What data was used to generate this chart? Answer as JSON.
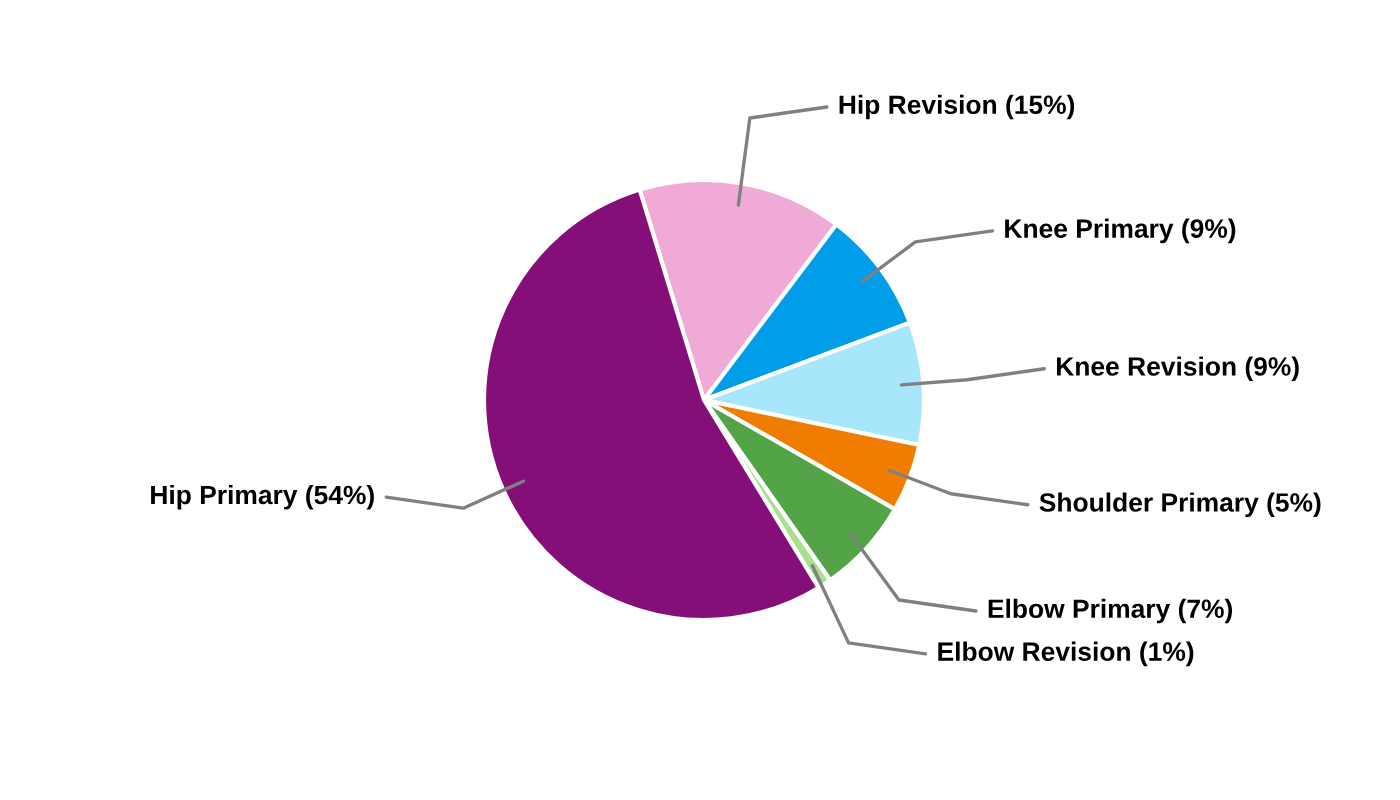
{
  "chart_data": {
    "type": "pie",
    "categories": [
      "Hip Revision (15%)",
      "Knee Primary (9%)",
      "Knee Revision (9%)",
      "Shoulder Primary (5%)",
      "Elbow Primary (7%)",
      "Elbow Revision (1%)",
      "Hip Primary (54%)"
    ],
    "values": [
      15,
      9,
      9,
      5,
      7,
      1,
      54
    ],
    "colors": [
      "#f0aad8",
      "#009ee8",
      "#a8e6fb",
      "#f07d00",
      "#52a447",
      "#a8e08c",
      "#850f78"
    ]
  }
}
